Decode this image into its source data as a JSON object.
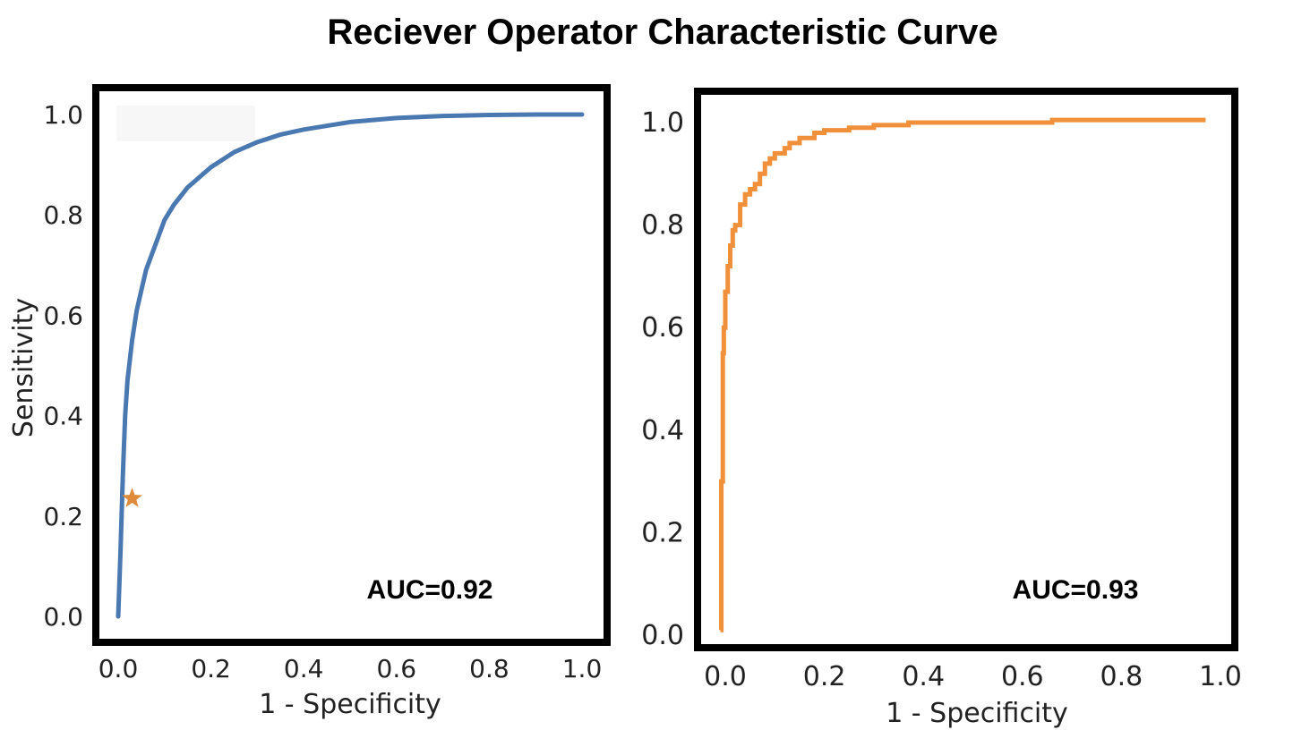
{
  "figure": {
    "title": "Reciever Operator Characteristic Curve"
  },
  "chart_data": [
    {
      "type": "line",
      "xlabel": "1 - Specificity",
      "ylabel": "Sensitivity",
      "xlim": [
        0.0,
        1.0
      ],
      "ylim": [
        0.0,
        1.0
      ],
      "xticks": [
        "0.0",
        "0.2",
        "0.4",
        "0.6",
        "0.8",
        "1.0"
      ],
      "yticks": [
        "0.0",
        "0.2",
        "0.4",
        "0.6",
        "0.8",
        "1.0"
      ],
      "grid": false,
      "annotation": "AUC=0.92",
      "colors": {
        "curve": "#4a78b0",
        "marker": "#e08a3c"
      },
      "series": [
        {
          "x": [
            0.0,
            0.005,
            0.01,
            0.015,
            0.02,
            0.03,
            0.04,
            0.05,
            0.06,
            0.08,
            0.1,
            0.12,
            0.15,
            0.2,
            0.25,
            0.3,
            0.35,
            0.4,
            0.5,
            0.6,
            0.7,
            0.8,
            0.9,
            1.0
          ],
          "y": [
            0.0,
            0.13,
            0.28,
            0.4,
            0.47,
            0.55,
            0.61,
            0.65,
            0.69,
            0.74,
            0.79,
            0.82,
            0.855,
            0.895,
            0.925,
            0.945,
            0.96,
            0.97,
            0.985,
            0.993,
            0.997,
            0.999,
            1.0,
            1.0
          ]
        }
      ],
      "markers": [
        {
          "shape": "star",
          "x": 0.03,
          "y": 0.235
        }
      ]
    },
    {
      "type": "line",
      "xlabel": "1 - Specificity",
      "xlim": [
        0.0,
        1.0
      ],
      "ylim": [
        0.0,
        1.0
      ],
      "xticks": [
        "0.0",
        "0.2",
        "0.4",
        "0.6",
        "0.8",
        "1.0"
      ],
      "yticks": [
        "0.0",
        "0.2",
        "0.4",
        "0.6",
        "0.8",
        "1.0"
      ],
      "grid": false,
      "annotation": "AUC=0.93",
      "colors": {
        "curve": "#f0903a"
      },
      "series": [
        {
          "x": [
            -0.01,
            -0.008,
            -0.005,
            -0.003,
            0.0,
            0.005,
            0.01,
            0.015,
            0.02,
            0.03,
            0.04,
            0.05,
            0.06,
            0.07,
            0.08,
            0.09,
            0.1,
            0.12,
            0.13,
            0.15,
            0.18,
            0.2,
            0.25,
            0.3,
            0.36,
            0.37,
            0.5,
            0.65,
            0.66,
            0.8,
            0.97
          ],
          "y": [
            0.01,
            0.3,
            0.55,
            0.6,
            0.67,
            0.72,
            0.76,
            0.79,
            0.8,
            0.84,
            0.86,
            0.87,
            0.88,
            0.9,
            0.92,
            0.93,
            0.94,
            0.95,
            0.96,
            0.97,
            0.98,
            0.985,
            0.99,
            0.995,
            0.995,
            1.0,
            1.0,
            1.0,
            1.005,
            1.005,
            1.005
          ]
        }
      ]
    }
  ]
}
